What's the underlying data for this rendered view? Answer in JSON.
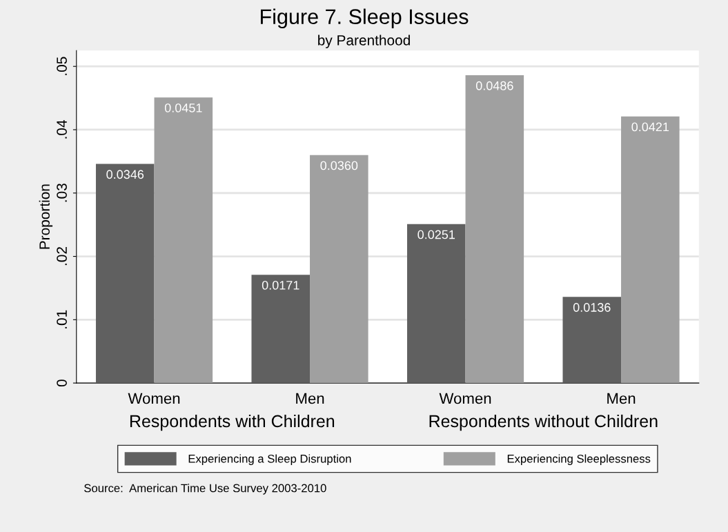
{
  "chart_data": {
    "type": "bar",
    "title": "Figure 7. Sleep Issues",
    "subtitle": "by Parenthood",
    "ylabel": "Proportion",
    "categories": [
      "Women",
      "Men",
      "Women",
      "Men"
    ],
    "series": [
      {
        "name": "Experiencing a Sleep Disruption",
        "color": "#606060",
        "values": [
          0.0346,
          0.0171,
          0.0251,
          0.0136
        ],
        "value_labels": [
          "0.0346",
          "0.0171",
          "0.0251",
          "0.0136"
        ]
      },
      {
        "name": "Experiencing Sleeplessness",
        "color": "#a0a0a0",
        "values": [
          0.0451,
          0.036,
          0.0486,
          0.0421
        ],
        "value_labels": [
          "0.0451",
          "0.0360",
          "0.0486",
          "0.0421"
        ]
      }
    ],
    "ylim": [
      0,
      0.0525
    ],
    "yticks": [
      {
        "value": 0,
        "label": "0"
      },
      {
        "value": 0.01,
        "label": ".01"
      },
      {
        "value": 0.02,
        "label": ".02"
      },
      {
        "value": 0.03,
        "label": ".03"
      },
      {
        "value": 0.04,
        "label": ".04"
      },
      {
        "value": 0.05,
        "label": ".05"
      }
    ],
    "grid": "y",
    "legend": "bottom",
    "annotations": [
      "Respondents with Children",
      "Respondents without Children",
      "Source:  American Time Use Survey 2003-2010"
    ]
  }
}
